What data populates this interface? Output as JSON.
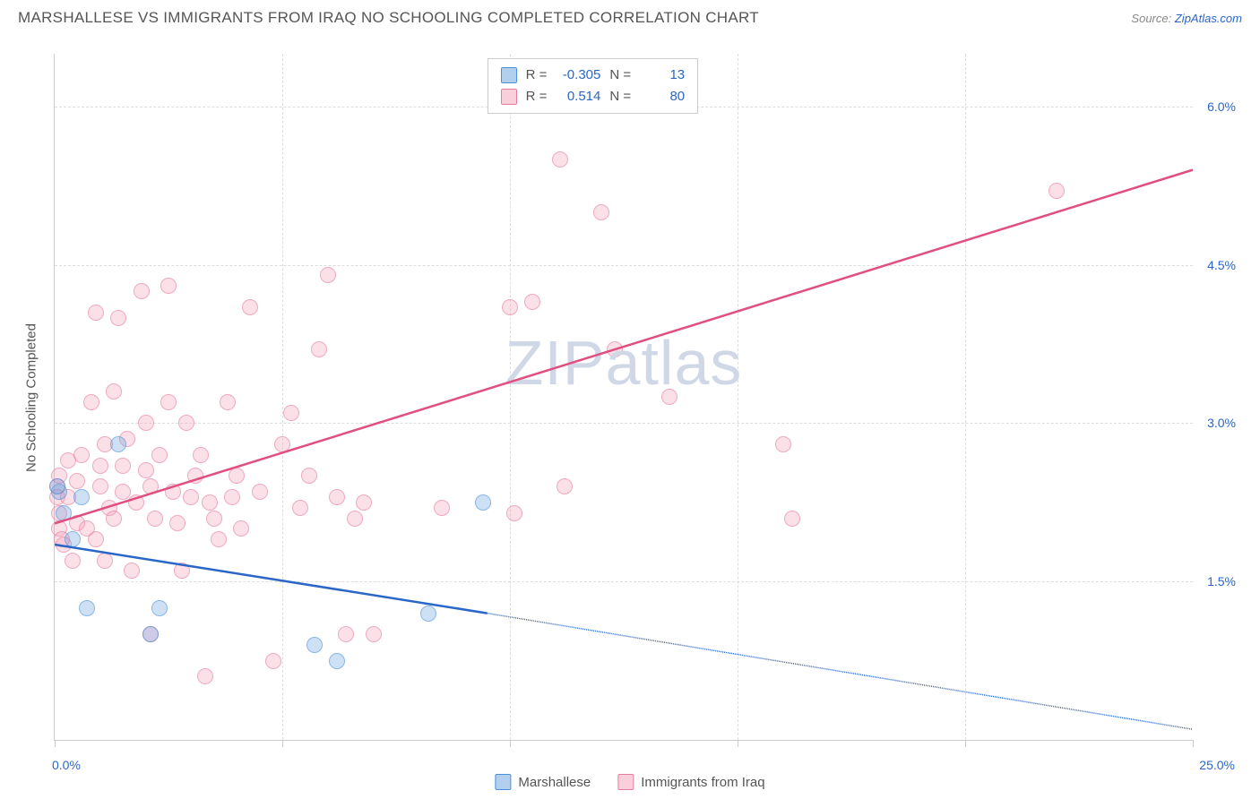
{
  "title": "MARSHALLESE VS IMMIGRANTS FROM IRAQ NO SCHOOLING COMPLETED CORRELATION CHART",
  "source_label": "Source:",
  "source_link": "ZipAtlas.com",
  "y_axis_title": "No Schooling Completed",
  "watermark": "ZIPatlas",
  "chart": {
    "type": "scatter",
    "background_color": "#ffffff",
    "grid_color": "#dddddd",
    "axis_color": "#cccccc",
    "xlim": [
      0,
      25
    ],
    "ylim": [
      0,
      6.5
    ],
    "x_tick_positions": [
      0,
      5,
      10,
      15,
      20,
      25
    ],
    "x_tick_labels_shown": {
      "0": "0.0%",
      "25": "25.0%"
    },
    "y_gridlines": [
      1.5,
      3.0,
      4.5,
      6.0
    ],
    "y_tick_labels": {
      "1.5": "1.5%",
      "3.0": "3.0%",
      "4.5": "4.5%",
      "6.0": "6.0%"
    },
    "legend_top": [
      {
        "series": "blue",
        "R_label": "R =",
        "R": "-0.305",
        "N_label": "N =",
        "N": "13"
      },
      {
        "series": "pink",
        "R_label": "R =",
        "R": "0.514",
        "N_label": "N =",
        "N": "80"
      }
    ],
    "legend_bottom": [
      {
        "series": "blue",
        "label": "Marshallese"
      },
      {
        "series": "pink",
        "label": "Immigrants from Iraq"
      }
    ],
    "series": {
      "marshallese": {
        "color_fill": "rgba(104,160,222,0.5)",
        "color_stroke": "#4a90d9",
        "trend": {
          "x1": 0,
          "y1": 1.85,
          "x2": 9.5,
          "y2": 1.2,
          "dash_x2": 25,
          "dash_y2": 0.1,
          "stroke": "#2a66c8",
          "width": 2.5
        },
        "points": [
          [
            0.1,
            2.35
          ],
          [
            0.2,
            2.15
          ],
          [
            0.4,
            1.9
          ],
          [
            0.6,
            2.3
          ],
          [
            1.4,
            2.8
          ],
          [
            0.7,
            1.25
          ],
          [
            2.3,
            1.25
          ],
          [
            2.1,
            1.0
          ],
          [
            5.7,
            0.9
          ],
          [
            6.2,
            0.75
          ],
          [
            8.2,
            1.2
          ],
          [
            9.4,
            2.25
          ],
          [
            0.05,
            2.4
          ]
        ]
      },
      "iraq": {
        "color_fill": "rgba(244,160,185,0.5)",
        "color_stroke": "#e67ca0",
        "trend": {
          "x1": 0,
          "y1": 2.05,
          "x2": 25,
          "y2": 5.4,
          "stroke": "#e04f7f",
          "width": 2.5
        },
        "points": [
          [
            0.05,
            2.4
          ],
          [
            0.05,
            2.3
          ],
          [
            0.1,
            2.15
          ],
          [
            0.1,
            2.5
          ],
          [
            0.1,
            2.0
          ],
          [
            0.15,
            1.9
          ],
          [
            0.3,
            2.65
          ],
          [
            0.3,
            2.3
          ],
          [
            0.5,
            2.45
          ],
          [
            0.5,
            2.05
          ],
          [
            0.6,
            2.7
          ],
          [
            0.7,
            2.0
          ],
          [
            0.8,
            3.2
          ],
          [
            0.9,
            1.9
          ],
          [
            0.9,
            4.05
          ],
          [
            1.0,
            2.4
          ],
          [
            1.0,
            2.6
          ],
          [
            1.1,
            2.8
          ],
          [
            1.1,
            1.7
          ],
          [
            1.2,
            2.2
          ],
          [
            1.3,
            3.3
          ],
          [
            1.3,
            2.1
          ],
          [
            1.4,
            4.0
          ],
          [
            1.5,
            2.35
          ],
          [
            1.5,
            2.6
          ],
          [
            1.6,
            2.85
          ],
          [
            1.7,
            1.6
          ],
          [
            1.8,
            2.25
          ],
          [
            1.9,
            4.25
          ],
          [
            2.0,
            3.0
          ],
          [
            2.0,
            2.55
          ],
          [
            2.1,
            2.4
          ],
          [
            2.1,
            1.0
          ],
          [
            2.2,
            2.1
          ],
          [
            2.3,
            2.7
          ],
          [
            2.5,
            4.3
          ],
          [
            2.5,
            3.2
          ],
          [
            2.6,
            2.35
          ],
          [
            2.7,
            2.05
          ],
          [
            2.8,
            1.6
          ],
          [
            2.9,
            3.0
          ],
          [
            3.0,
            2.3
          ],
          [
            3.1,
            2.5
          ],
          [
            3.2,
            2.7
          ],
          [
            3.3,
            0.6
          ],
          [
            3.4,
            2.25
          ],
          [
            3.5,
            2.1
          ],
          [
            3.6,
            1.9
          ],
          [
            3.8,
            3.2
          ],
          [
            3.9,
            2.3
          ],
          [
            4.0,
            2.5
          ],
          [
            4.1,
            2.0
          ],
          [
            4.3,
            4.1
          ],
          [
            4.5,
            2.35
          ],
          [
            4.8,
            0.75
          ],
          [
            5.0,
            2.8
          ],
          [
            5.2,
            3.1
          ],
          [
            5.4,
            2.2
          ],
          [
            5.6,
            2.5
          ],
          [
            5.8,
            3.7
          ],
          [
            6.0,
            4.4
          ],
          [
            6.2,
            2.3
          ],
          [
            6.4,
            1.0
          ],
          [
            6.6,
            2.1
          ],
          [
            6.8,
            2.25
          ],
          [
            7.0,
            1.0
          ],
          [
            8.5,
            2.2
          ],
          [
            10.0,
            4.1
          ],
          [
            10.1,
            2.15
          ],
          [
            10.5,
            4.15
          ],
          [
            11.1,
            5.5
          ],
          [
            11.2,
            2.4
          ],
          [
            12.0,
            5.0
          ],
          [
            12.3,
            3.7
          ],
          [
            13.5,
            3.25
          ],
          [
            16.0,
            2.8
          ],
          [
            16.2,
            2.1
          ],
          [
            22.0,
            5.2
          ],
          [
            0.2,
            1.85
          ],
          [
            0.4,
            1.7
          ]
        ]
      }
    }
  }
}
